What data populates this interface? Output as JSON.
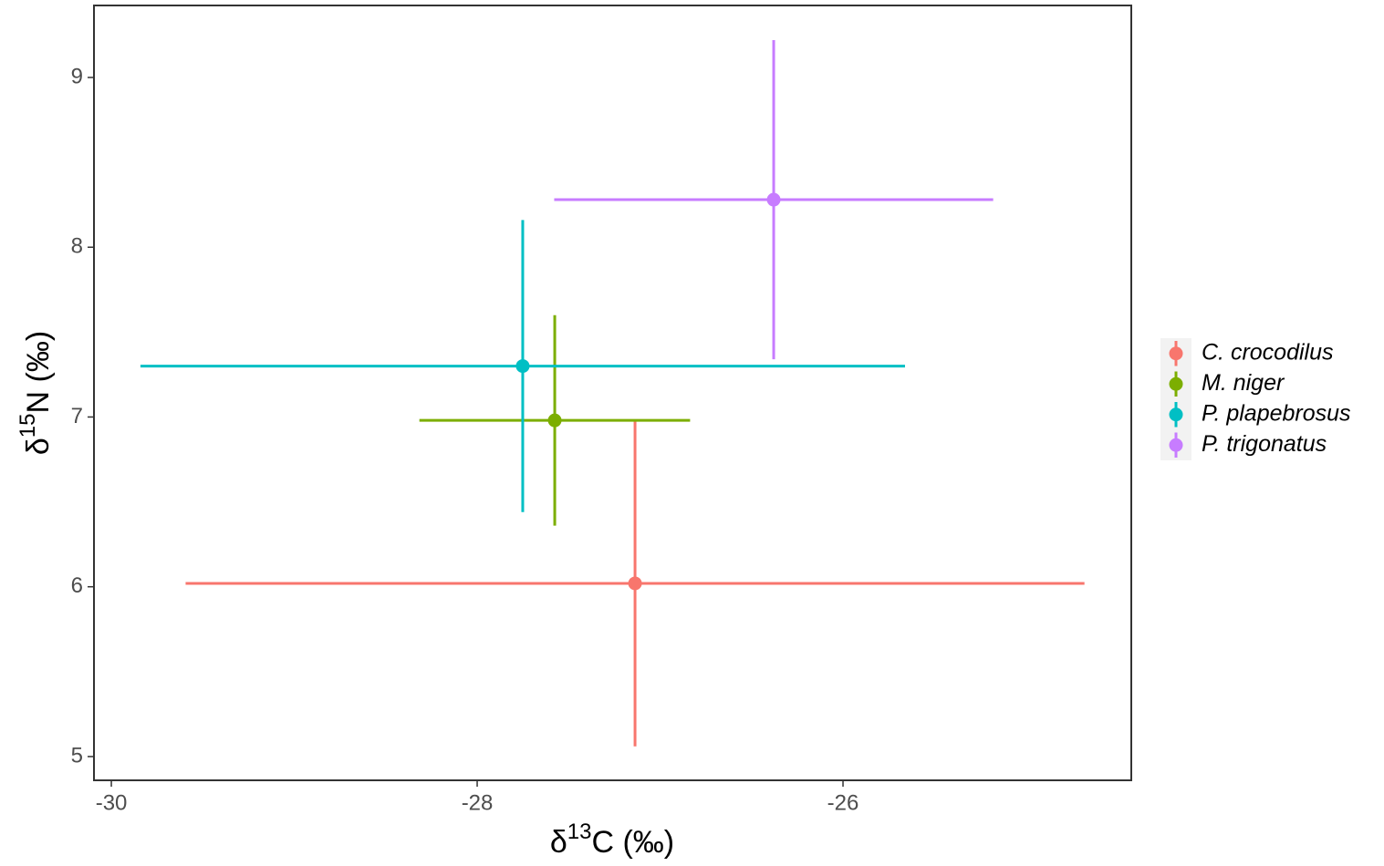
{
  "chart_data": {
    "type": "errorbar-scatter",
    "x_label": {
      "prefix": "δ",
      "sup": "13",
      "suffix": "C (‰)"
    },
    "y_label": {
      "prefix": "δ",
      "sup": "15",
      "suffix": "N (‰)"
    },
    "xlim": [
      -30.095,
      -24.424
    ],
    "xticks": [
      -30,
      -28,
      -26
    ],
    "ylim": [
      4.86,
      9.424
    ],
    "yticks": [
      5,
      6,
      7,
      8,
      9
    ],
    "grid": false,
    "legend": "right",
    "series": [
      {
        "name": "C. crocodilus",
        "color": "#f8766d",
        "x": -27.137,
        "y": 6.02,
        "xerr": 2.457,
        "yerr": 0.96
      },
      {
        "name": "M. niger",
        "color": "#7cae00",
        "x": -27.576,
        "y": 6.98,
        "xerr": 0.74,
        "yerr": 0.62
      },
      {
        "name": "P. plapebrosus",
        "color": "#00bfc4",
        "x": -27.751,
        "y": 7.3,
        "xerr": 2.09,
        "yerr": 0.86
      },
      {
        "name": "P. trigonatus",
        "color": "#c77cff",
        "x": -26.379,
        "y": 8.28,
        "xerr": 1.2,
        "yerr": 0.94
      }
    ]
  }
}
